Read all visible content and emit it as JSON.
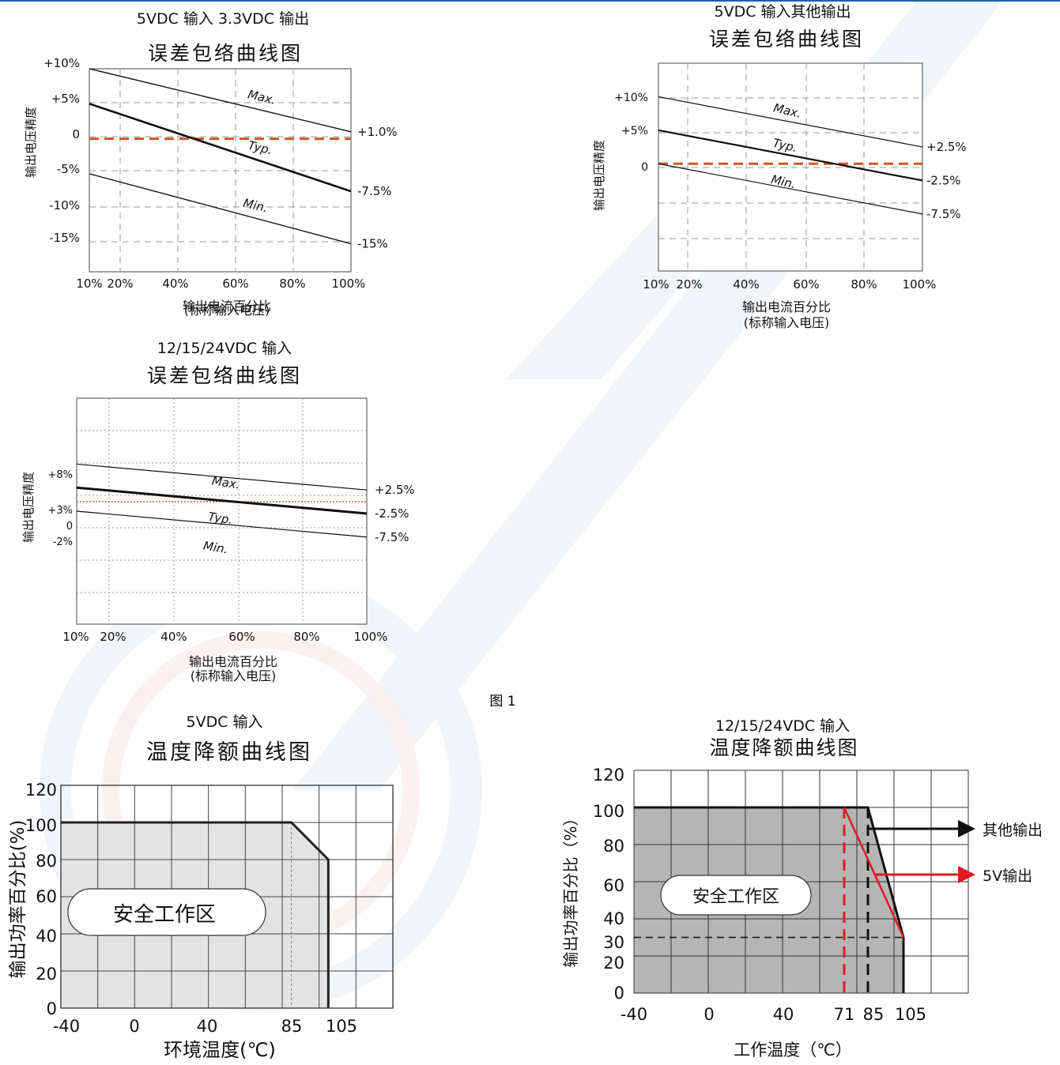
{
  "colors": {
    "topline": "#1f5fa6",
    "zero_dash": "#d9531e",
    "red": "#e01b24",
    "gray_fill": "#b5b5b5",
    "light_fill": "#e3e3e3",
    "grid": "#9a9a9a"
  },
  "figure_label": "图 1",
  "chart_data": [
    {
      "type": "line",
      "subtitle": "5VDC 输入 3.3VDC 输出",
      "title": "误差包络曲线图",
      "xlabel": "输出电流百分比",
      "xlabel2": "(标称输入电压)",
      "ylabel": "输出电压精度",
      "x_ticks": [
        "10%",
        "20%",
        "40%",
        "60%",
        "80%",
        "100%"
      ],
      "y_ticks": [
        "+10%",
        "+5%",
        "0",
        "-5%",
        "-10%",
        "-15%"
      ],
      "x_range": [
        10,
        100
      ],
      "y_range": [
        -19,
        10
      ],
      "series": [
        {
          "name": "Max.",
          "x": [
            10,
            100
          ],
          "y": [
            10,
            1
          ]
        },
        {
          "name": "Typ.",
          "x": [
            10,
            100
          ],
          "y": [
            5,
            -7.5
          ]
        },
        {
          "name": "Min.",
          "x": [
            10,
            100
          ],
          "y": [
            -5,
            -15
          ]
        }
      ],
      "end_labels": [
        "+1.0%",
        "-7.5%",
        "-15%"
      ]
    },
    {
      "type": "line",
      "subtitle": "5VDC 输入其他输出",
      "title": "误差包络曲线图",
      "xlabel": "输出电流百分比",
      "xlabel2": "(标称输入电压)",
      "ylabel": "输出电压精度",
      "x_ticks": [
        "10%",
        "20%",
        "40%",
        "60%",
        "80%",
        "100%"
      ],
      "y_ticks": [
        "+10%",
        "+5%",
        "0"
      ],
      "x_range": [
        10,
        100
      ],
      "y_range": [
        -16,
        15
      ],
      "series": [
        {
          "name": "Max.",
          "x": [
            10,
            100
          ],
          "y": [
            10,
            2.5
          ]
        },
        {
          "name": "Typ.",
          "x": [
            10,
            100
          ],
          "y": [
            5,
            -2.5
          ]
        },
        {
          "name": "Min.",
          "x": [
            10,
            100
          ],
          "y": [
            0,
            -7.5
          ]
        }
      ],
      "end_labels": [
        "+2.5%",
        "-2.5%",
        "-7.5%"
      ]
    },
    {
      "type": "line",
      "subtitle": "12/15/24VDC 输入",
      "title": "误差包络曲线图",
      "xlabel": "输出电流百分比",
      "xlabel2": "(标称输入电压)",
      "ylabel": "输出电压精度",
      "x_ticks": [
        "10%",
        "20%",
        "40%",
        "60%",
        "80%",
        "100%"
      ],
      "y_ticks": [
        "+8%",
        "+3%",
        "0",
        "-2%"
      ],
      "x_range": [
        10,
        100
      ],
      "y_range": [
        -26,
        22
      ],
      "series": [
        {
          "name": "Max.",
          "x": [
            10,
            100
          ],
          "y": [
            8,
            2.5
          ]
        },
        {
          "name": "Typ.",
          "x": [
            10,
            100
          ],
          "y": [
            3,
            -2.5
          ]
        },
        {
          "name": "Min.",
          "x": [
            10,
            100
          ],
          "y": [
            -2,
            -7.5
          ]
        }
      ],
      "end_labels": [
        "+2.5%",
        "-2.5%",
        "-7.5%"
      ]
    },
    {
      "type": "area",
      "subtitle": "5VDC 输入",
      "title": "温度降额曲线图",
      "xlabel": "环境温度(℃)",
      "ylabel": "输出功率百分比(%)",
      "x_ticks": [
        "-40",
        "0",
        "40",
        "85",
        "105"
      ],
      "y_ticks": [
        "120",
        "100",
        "80",
        "60",
        "40",
        "20",
        "0"
      ],
      "x_range": [
        -40,
        140
      ],
      "y_range": [
        0,
        120
      ],
      "series": [
        {
          "name": "",
          "x": [
            -40,
            85,
            105,
            105
          ],
          "y": [
            100,
            100,
            80,
            0
          ]
        }
      ],
      "region_label": "安全工作区"
    },
    {
      "type": "area",
      "subtitle": "12/15/24VDC 输入",
      "title": "温度降额曲线图",
      "xlabel": "工作温度（℃）",
      "ylabel": "输出功率百分比（%）",
      "x_ticks": [
        "-40",
        "0",
        "40",
        "71",
        "85",
        "105"
      ],
      "y_ticks": [
        "120",
        "100",
        "80",
        "60",
        "40",
        "30",
        "20",
        "0"
      ],
      "x_range": [
        -40,
        140
      ],
      "y_range": [
        0,
        120
      ],
      "series": [
        {
          "name": "其他输出",
          "x": [
            -40,
            85,
            105,
            105
          ],
          "y": [
            100,
            100,
            30,
            0
          ]
        },
        {
          "name": "5V输出",
          "x": [
            71,
            105
          ],
          "y": [
            100,
            30
          ]
        }
      ],
      "region_label": "安全工作区"
    }
  ]
}
